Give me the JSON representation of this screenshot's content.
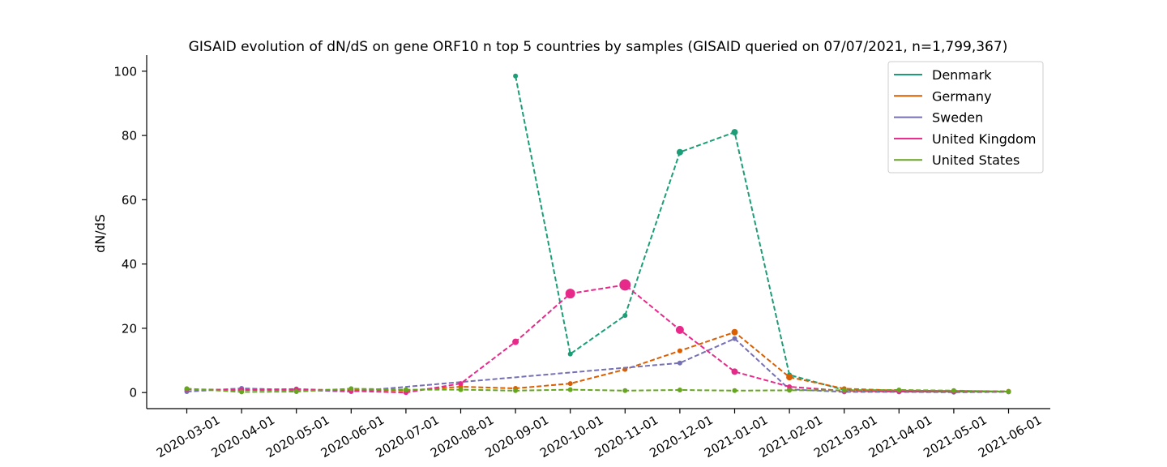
{
  "chart_data": {
    "type": "line",
    "title": "GISAID evolution of dN/dS on gene ORF10 n top 5 countries by samples (GISAID queried on 07/07/2021, n=1,799,367)",
    "xlabel": "",
    "ylabel": "dN/dS",
    "ylim": [
      -5,
      105
    ],
    "yticks": [
      0,
      20,
      40,
      60,
      80,
      100
    ],
    "categories": [
      "2020-03-01",
      "2020-04-01",
      "2020-05-01",
      "2020-06-01",
      "2020-07-01",
      "2020-08-01",
      "2020-09-01",
      "2020-10-01",
      "2020-11-01",
      "2020-12-01",
      "2021-01-01",
      "2021-02-01",
      "2021-03-01",
      "2021-04-01",
      "2021-05-01",
      "2021-06-01"
    ],
    "legend_position": "top-right",
    "grid": false,
    "series": [
      {
        "name": "Denmark",
        "color": "#1b9e77",
        "values": [
          null,
          null,
          null,
          null,
          null,
          null,
          98.5,
          12.0,
          24.0,
          74.8,
          81.0,
          5.5,
          0.8,
          0.5,
          0.4,
          0.3
        ],
        "point_sizes": [
          0,
          0,
          0,
          0,
          0,
          0,
          3,
          3,
          3,
          4,
          4,
          3,
          3,
          3,
          3,
          3
        ]
      },
      {
        "name": "Germany",
        "color": "#d95f02",
        "values": [
          1.0,
          0.8,
          0.8,
          0.9,
          0.6,
          1.8,
          1.3,
          2.8,
          7.2,
          13.0,
          18.8,
          4.8,
          1.2,
          0.6,
          0.5,
          0.4
        ],
        "point_sizes": [
          3,
          3,
          3,
          3,
          3,
          3,
          3,
          3,
          3,
          3,
          4,
          4,
          3,
          3,
          3,
          3
        ]
      },
      {
        "name": "Sweden",
        "color": "#7570b3",
        "values": [
          0.3,
          1.3,
          0.8,
          0.3,
          null,
          null,
          null,
          null,
          null,
          9.2,
          16.8,
          1.0,
          0.2,
          0.2,
          0.1,
          0.2
        ],
        "point_sizes": [
          3,
          3,
          3,
          3,
          0,
          0,
          0,
          0,
          0,
          3,
          3,
          3,
          3,
          3,
          3,
          3
        ]
      },
      {
        "name": "United Kingdom",
        "color": "#e7298a",
        "values": [
          1.0,
          0.8,
          1.1,
          0.5,
          0.0,
          2.8,
          15.8,
          30.8,
          33.5,
          19.5,
          6.5,
          1.8,
          0.5,
          0.3,
          0.3,
          0.3
        ],
        "point_sizes": [
          3,
          3,
          3,
          3,
          3,
          3,
          4,
          6,
          7,
          5,
          4,
          3,
          3,
          3,
          3,
          3
        ]
      },
      {
        "name": "United States",
        "color": "#66a61e",
        "values": [
          1.2,
          0.2,
          0.3,
          1.2,
          0.9,
          0.9,
          0.6,
          0.9,
          0.6,
          0.8,
          0.6,
          0.7,
          0.7,
          0.8,
          0.6,
          0.3
        ],
        "point_sizes": [
          3,
          3,
          3,
          3,
          3,
          3,
          3,
          3,
          3,
          3,
          3,
          3,
          3,
          3,
          3,
          3
        ]
      }
    ]
  }
}
